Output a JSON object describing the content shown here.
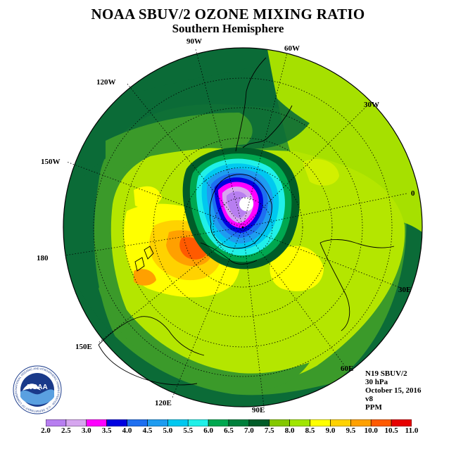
{
  "title": "NOAA SBUV/2 OZONE MIXING RATIO",
  "subtitle": "Southern Hemisphere",
  "longitude_labels": [
    "90W",
    "60W",
    "30W",
    "0",
    "30E",
    "60E",
    "90E",
    "120E",
    "150E",
    "180",
    "150W",
    "120W"
  ],
  "info": {
    "line1": "N19 SBUV/2",
    "line2": "30 hPa",
    "line3": "October 15, 2016",
    "line4": "v8",
    "line5": "PPM"
  },
  "logo": {
    "text": "NOAA",
    "ring_text": "NATIONAL OCEANIC AND ATMOSPHERIC ADMINISTRATION · U.S. DEPARTMENT OF COMMERCE"
  },
  "colorbar": {
    "labels": [
      "2.0",
      "2.5",
      "3.0",
      "3.5",
      "4.0",
      "4.5",
      "5.0",
      "5.5",
      "6.0",
      "6.5",
      "7.0",
      "7.5",
      "8.0",
      "8.5",
      "9.0",
      "9.5",
      "10.0",
      "10.5",
      "11.0"
    ],
    "colors": [
      "#b77ef0",
      "#d6a6ef",
      "#ff00ff",
      "#0000e0",
      "#1e6ff0",
      "#1e9cf0",
      "#00c8f0",
      "#20f0e8",
      "#00a850",
      "#00803c",
      "#005c28",
      "#84c800",
      "#a0e600",
      "#ffff00",
      "#ffd200",
      "#ffa000",
      "#ff5a00",
      "#e60000",
      "#8c5028"
    ]
  },
  "colors": {
    "outer_band": "#0b6b37",
    "mid_green": "#2d8f3a",
    "lime": "#b4e600",
    "hole_core": "#ffffff"
  }
}
